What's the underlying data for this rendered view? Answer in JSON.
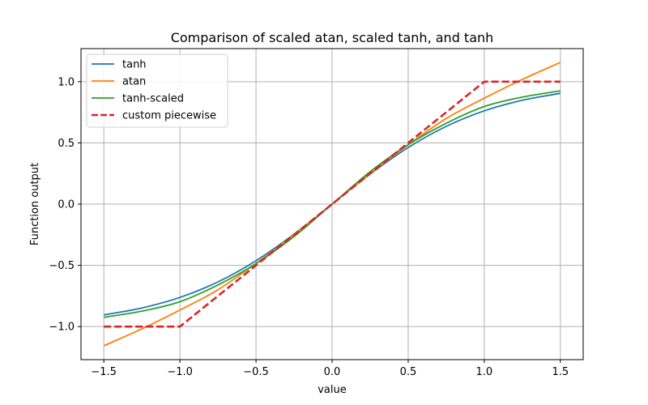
{
  "chart_data": {
    "type": "line",
    "title": "Comparison of scaled atan, scaled tanh, and tanh",
    "xlabel": "value",
    "ylabel": "Function output",
    "xlim": [
      -1.65,
      1.65
    ],
    "ylim": [
      -1.27,
      1.27
    ],
    "grid": true,
    "legend_position": "top-left",
    "xticks": [
      -1.5,
      -1.0,
      -0.5,
      0.0,
      0.5,
      1.0,
      1.5
    ],
    "xtick_labels": [
      "−1.5",
      "−1.0",
      "−0.5",
      "0.0",
      "0.5",
      "1.0",
      "1.5"
    ],
    "yticks": [
      -1.0,
      -0.5,
      0.0,
      0.5,
      1.0
    ],
    "ytick_labels": [
      "−1.0",
      "−0.5",
      "0.0",
      "0.5",
      "1.0"
    ],
    "x": [
      -1.5,
      -1.25,
      -1.0,
      -0.75,
      -0.5,
      -0.25,
      0.0,
      0.25,
      0.5,
      0.75,
      1.0,
      1.25,
      1.5
    ],
    "series": [
      {
        "name": "tanh",
        "color": "#1f77b4",
        "dash": "solid",
        "values": [
          -0.905,
          -0.848,
          -0.762,
          -0.635,
          -0.462,
          -0.245,
          0.0,
          0.245,
          0.462,
          0.635,
          0.762,
          0.848,
          0.905
        ]
      },
      {
        "name": "atan",
        "color": "#ff7f0e",
        "dash": "solid",
        "values": [
          -1.157,
          -1.018,
          -0.865,
          -0.699,
          -0.484,
          -0.25,
          0.0,
          0.25,
          0.484,
          0.699,
          0.865,
          1.018,
          1.157
        ]
      },
      {
        "name": "tanh-scaled",
        "color": "#2ca02c",
        "dash": "solid",
        "values": [
          -0.925,
          -0.874,
          -0.797,
          -0.66,
          -0.485,
          -0.265,
          0.0,
          0.265,
          0.485,
          0.66,
          0.797,
          0.874,
          0.925
        ]
      },
      {
        "name": "custom piecewise",
        "color": "#d62728",
        "dash": "dashed",
        "x": [
          -1.5,
          -1.0,
          1.0,
          1.5
        ],
        "values": [
          -1.0,
          -1.0,
          1.0,
          1.0
        ]
      }
    ]
  }
}
